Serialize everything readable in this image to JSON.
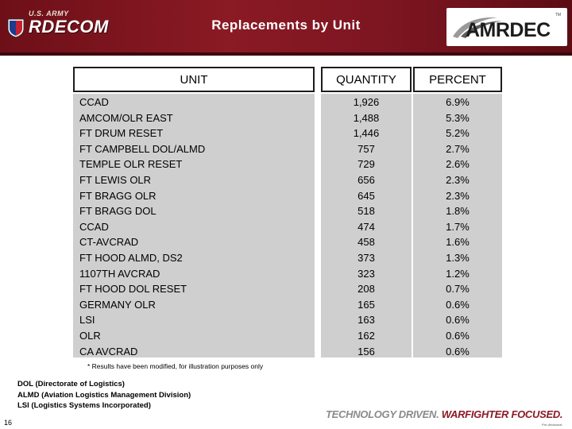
{
  "header": {
    "brand_small": "U.S. ARMY",
    "brand_name": "RDECOM",
    "title": "Replacements by Unit",
    "logo_text": "AMRDEC",
    "logo_tm": "TM",
    "color_banner": "#7b1520"
  },
  "table": {
    "headers": {
      "unit": "UNIT",
      "quantity": "QUANTITY",
      "percent": "PERCENT"
    },
    "rows": [
      {
        "unit": "CCAD",
        "quantity": "1,926",
        "percent": "6.9%"
      },
      {
        "unit": "AMCOM/OLR EAST",
        "quantity": "1,488",
        "percent": "5.3%"
      },
      {
        "unit": "FT DRUM RESET",
        "quantity": "1,446",
        "percent": "5.2%"
      },
      {
        "unit": "FT CAMPBELL DOL/ALMD",
        "quantity": "757",
        "percent": "2.7%"
      },
      {
        "unit": "TEMPLE OLR RESET",
        "quantity": "729",
        "percent": "2.6%"
      },
      {
        "unit": "FT LEWIS OLR",
        "quantity": "656",
        "percent": "2.3%"
      },
      {
        "unit": "FT BRAGG OLR",
        "quantity": "645",
        "percent": "2.3%"
      },
      {
        "unit": "FT BRAGG DOL",
        "quantity": "518",
        "percent": "1.8%"
      },
      {
        "unit": "CCAD",
        "quantity": "474",
        "percent": "1.7%"
      },
      {
        "unit": "CT-AVCRAD",
        "quantity": "458",
        "percent": "1.6%"
      },
      {
        "unit": "FT HOOD ALMD, DS2",
        "quantity": "373",
        "percent": "1.3%"
      },
      {
        "unit": "1107TH AVCRAD",
        "quantity": "323",
        "percent": "1.2%"
      },
      {
        "unit": "FT HOOD DOL RESET",
        "quantity": "208",
        "percent": "0.7%"
      },
      {
        "unit": "GERMANY OLR",
        "quantity": "165",
        "percent": "0.6%"
      },
      {
        "unit": "LSI",
        "quantity": "163",
        "percent": "0.6%"
      },
      {
        "unit": "OLR",
        "quantity": "162",
        "percent": "0.6%"
      },
      {
        "unit": "CA AVCRAD",
        "quantity": "156",
        "percent": "0.6%"
      }
    ]
  },
  "footnote": "* Results have been modified, for illustration purposes only",
  "legend": [
    "DOL (Directorate of Logistics)",
    "ALMD (Aviation Logistics Management Division)",
    "LSI (Logistics Systems Incorporated)"
  ],
  "footer": {
    "page_number": "16",
    "tagline_part1": "TECHNOLOGY DRIVEN.",
    "tagline_part2": "WARFIGHTER FOCUSED.",
    "fine_print": "Pre-decisional"
  }
}
